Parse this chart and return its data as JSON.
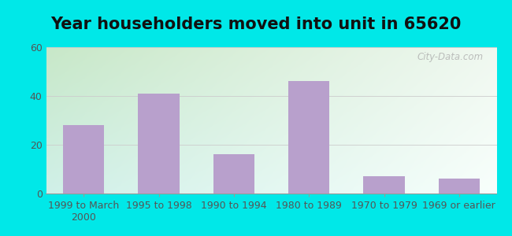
{
  "title": "Year householders moved into unit in 65620",
  "categories": [
    "1999 to March\n2000",
    "1995 to 1998",
    "1990 to 1994",
    "1980 to 1989",
    "1970 to 1979",
    "1969 or earlier"
  ],
  "values": [
    28,
    41,
    16,
    46,
    7,
    6
  ],
  "bar_color": "#b8a0cc",
  "ylim": [
    0,
    60
  ],
  "yticks": [
    0,
    20,
    40,
    60
  ],
  "background_outer": "#00e8e8",
  "grid_color": "#cccccc",
  "title_fontsize": 15,
  "tick_fontsize": 9,
  "watermark": "City-Data.com",
  "bg_topleft": "#c8e8c8",
  "bg_topright": "#e8f0e8",
  "bg_bottomleft": "#d8f8f0",
  "bg_bottomright": "#f8fffc"
}
